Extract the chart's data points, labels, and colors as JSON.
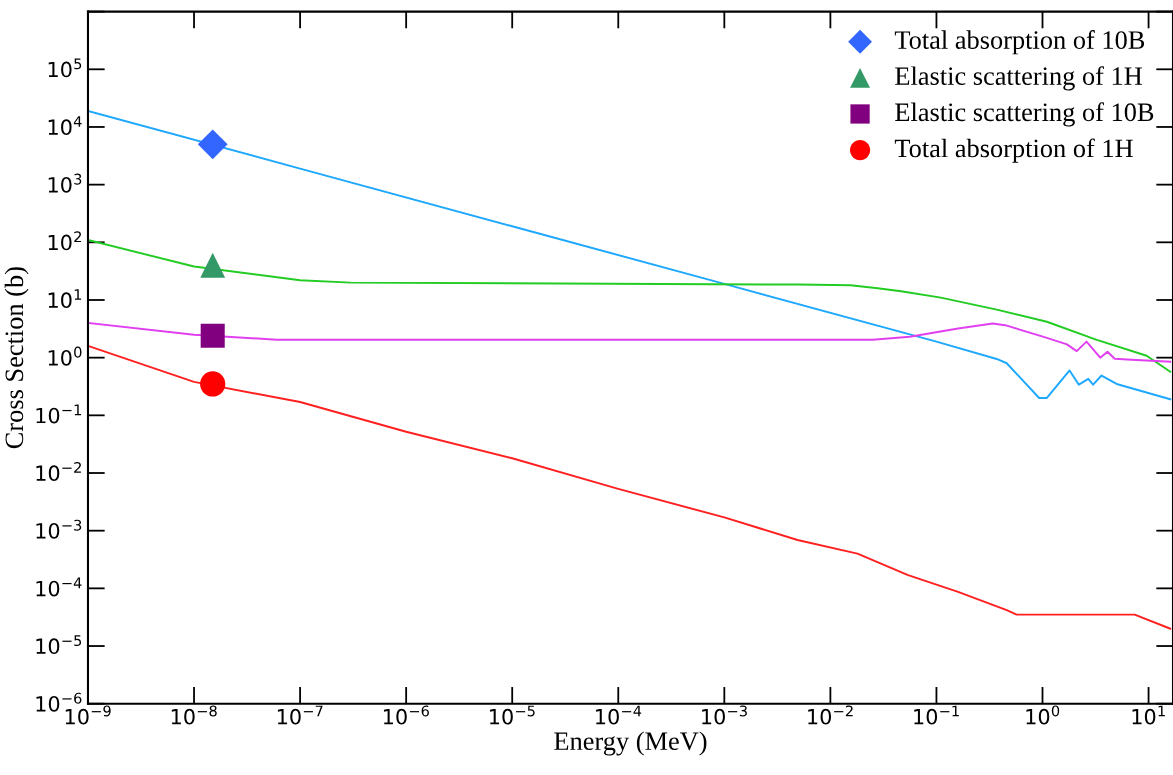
{
  "chart_data": {
    "type": "line",
    "xlabel": "Energy (MeV)",
    "ylabel": "Cross Section (b)",
    "log": "xy",
    "grid": false,
    "legend": "top right",
    "xlim": [
      1e-09,
      17
    ],
    "ylim": [
      1e-06,
      1000000.0
    ],
    "xticks": [
      {
        "value": 1e-09,
        "label": "10$^{−9}$"
      },
      {
        "value": 1e-08,
        "label": "10$^{−8}$"
      },
      {
        "value": 1e-07,
        "label": "10$^{−7}$"
      },
      {
        "value": 1e-06,
        "label": "10$^{−6}$"
      },
      {
        "value": 1e-05,
        "label": "10$^{−5}$"
      },
      {
        "value": 0.0001,
        "label": "10$^{−4}$"
      },
      {
        "value": 0.001,
        "label": "10$^{−3}$"
      },
      {
        "value": 0.01,
        "label": "10$^{−2}$"
      },
      {
        "value": 0.1,
        "label": "10$^{−1}$"
      },
      {
        "value": 1,
        "label": "10$^{0}$"
      },
      {
        "value": 10,
        "label": "10$^{1}$"
      }
    ],
    "yticks": [
      {
        "value": 1e-06,
        "label": "10$^{−6}$"
      },
      {
        "value": 1e-05,
        "label": "10$^{−5}$"
      },
      {
        "value": 0.0001,
        "label": "10$^{−4}$"
      },
      {
        "value": 0.001,
        "label": "10$^{−3}$"
      },
      {
        "value": 0.01,
        "label": "10$^{−2}$"
      },
      {
        "value": 0.1,
        "label": "10$^{−1}$"
      },
      {
        "value": 1,
        "label": "10$^{0}$"
      },
      {
        "value": 10,
        "label": "10$^{1}$"
      },
      {
        "value": 100,
        "label": "10$^{2}$"
      },
      {
        "value": 1000,
        "label": "10$^{3}$"
      },
      {
        "value": 10000,
        "label": "10$^{4}$"
      },
      {
        "value": 100000,
        "label": "10$^{5}$"
      },
      {
        "value": 1000000,
        "label": null
      }
    ],
    "series": [
      {
        "color": "#1ea8ff",
        "x": [
          1e-09,
          1e-07,
          1e-05,
          0.001,
          0.1,
          0.37,
          0.46,
          0.93,
          1.1,
          1.8,
          2.2,
          2.7,
          3.0,
          3.6,
          5.0,
          16
        ],
        "values": [
          19000,
          1900,
          190,
          19,
          1.9,
          0.95,
          0.8,
          0.2,
          0.2,
          0.6,
          0.34,
          0.43,
          0.34,
          0.49,
          0.35,
          0.19
        ]
      },
      {
        "color": "#22cc22",
        "x": [
          1e-09,
          1e-08,
          1e-07,
          3e-07,
          0.0049,
          0.0155,
          0.028,
          0.048,
          0.11,
          0.37,
          1.1,
          3.2,
          9.6,
          16
        ],
        "values": [
          110,
          38,
          22,
          20,
          18.5,
          18,
          16,
          14,
          11,
          6.8,
          4.2,
          2.05,
          1.08,
          0.57
        ]
      },
      {
        "color": "#e040f0",
        "x": [
          1e-09,
          1e-08,
          6e-08,
          0.025,
          0.056,
          0.16,
          0.34,
          0.46,
          1.1,
          1.7,
          2.1,
          2.6,
          3.5,
          4.1,
          4.8,
          6.9,
          16
        ],
        "values": [
          4.0,
          2.5,
          2.05,
          2.05,
          2.3,
          3.2,
          3.9,
          3.6,
          2.2,
          1.7,
          1.3,
          1.9,
          1.0,
          1.27,
          0.96,
          0.92,
          0.85
        ]
      },
      {
        "color": "#ff2020",
        "x": [
          1e-09,
          1e-08,
          1e-07,
          1e-06,
          1e-05,
          0.0001,
          0.001,
          0.0049,
          0.018,
          0.054,
          0.16,
          0.46,
          0.57,
          7.4,
          16
        ],
        "values": [
          1.6,
          0.38,
          0.17,
          0.052,
          0.018,
          0.0053,
          0.0017,
          0.00069,
          0.0004,
          0.00017,
          8.7e-05,
          4.2e-05,
          3.5e-05,
          3.5e-05,
          2e-05
        ]
      },
      {
        "type": "scatter",
        "name": "Total absorption of 10B",
        "marker": "diamond",
        "color": "#3366ff",
        "x": [
          1.5e-08
        ],
        "values": [
          5000
        ]
      },
      {
        "type": "scatter",
        "name": "Elastic scattering of 1H",
        "marker": "triangle",
        "color": "#339966",
        "x": [
          1.5e-08
        ],
        "values": [
          40
        ]
      },
      {
        "type": "scatter",
        "name": "Elastic scattering of 10B",
        "marker": "square",
        "color": "#800080",
        "x": [
          1.5e-08
        ],
        "values": [
          2.4
        ]
      },
      {
        "type": "scatter",
        "name": "Total absorption of 1H",
        "marker": "circle",
        "color": "#ff0000",
        "x": [
          1.5e-08
        ],
        "values": [
          0.35
        ]
      }
    ]
  }
}
